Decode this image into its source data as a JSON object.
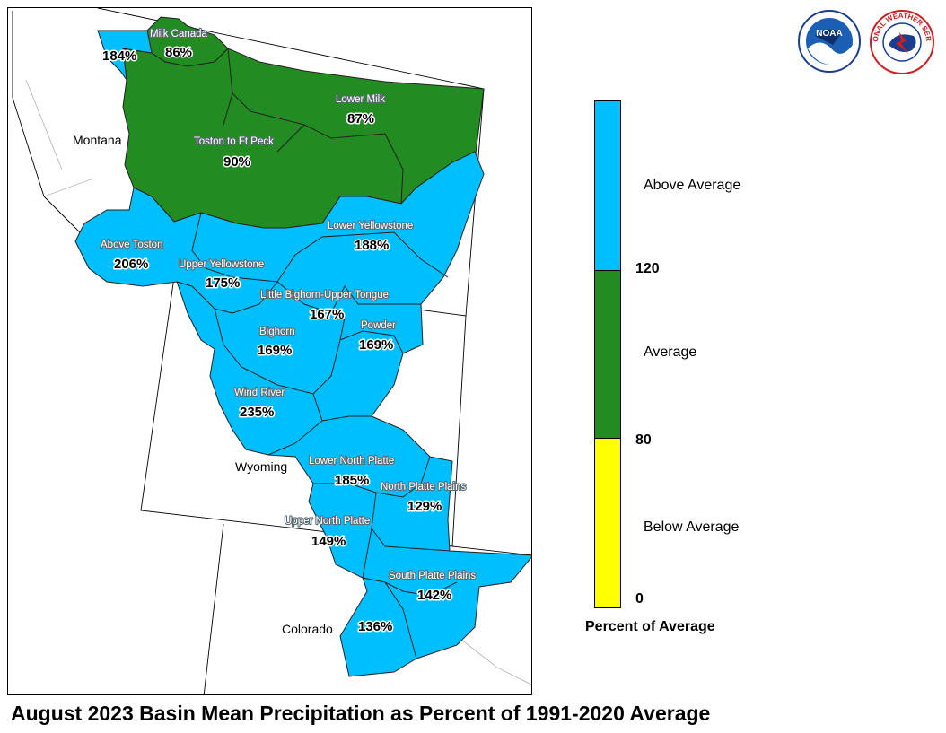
{
  "title": "August 2023 Basin Mean Precipitation as Percent of 1991-2020 Average",
  "colors": {
    "above": "#00bfff",
    "average": "#228b22",
    "below": "#ffff00",
    "border": "#222222"
  },
  "states": [
    {
      "id": "montana",
      "label": "Montana"
    },
    {
      "id": "wyoming",
      "label": "Wyoming"
    },
    {
      "id": "colorado",
      "label": "Colorado"
    }
  ],
  "basins": [
    {
      "id": "milk-canada",
      "name": "Milk Canada",
      "value": "86%",
      "category": "average"
    },
    {
      "id": "upper-milk",
      "name": "",
      "value": "184%",
      "category": "above"
    },
    {
      "id": "lower-milk",
      "name": "Lower Milk",
      "value": "87%",
      "category": "average"
    },
    {
      "id": "toston-ft-peck",
      "name": "Toston to Ft Peck",
      "value": "90%",
      "category": "average"
    },
    {
      "id": "above-toston",
      "name": "Above Toston",
      "value": "206%",
      "category": "above"
    },
    {
      "id": "upper-yellowstone",
      "name": "Upper Yellowstone",
      "value": "175%",
      "category": "above"
    },
    {
      "id": "lower-yellowstone",
      "name": "Lower Yellowstone",
      "value": "188%",
      "category": "above"
    },
    {
      "id": "little-bighorn",
      "name": "Little Bighorn-Upper Tongue",
      "value": "167%",
      "category": "above"
    },
    {
      "id": "bighorn",
      "name": "Bighorn",
      "value": "169%",
      "category": "above"
    },
    {
      "id": "powder",
      "name": "Powder",
      "value": "169%",
      "category": "above"
    },
    {
      "id": "wind-river",
      "name": "Wind River",
      "value": "235%",
      "category": "above"
    },
    {
      "id": "lower-north-platte",
      "name": "Lower North Platte",
      "value": "185%",
      "category": "above"
    },
    {
      "id": "north-platte-plains",
      "name": "North Platte Plains",
      "value": "129%",
      "category": "above"
    },
    {
      "id": "upper-north-platte",
      "name": "Upper North Platte",
      "value": "149%",
      "category": "above"
    },
    {
      "id": "south-platte-plains",
      "name": "South Platte Plains",
      "value": "142%",
      "category": "above"
    },
    {
      "id": "south-platte-mountains",
      "name": "",
      "value": "136%",
      "category": "above"
    }
  ],
  "legend": {
    "title": "Percent of Average",
    "categories": [
      {
        "label": "Above Average",
        "color": "#00bfff"
      },
      {
        "label": "Average",
        "color": "#228b22"
      },
      {
        "label": "Below Average",
        "color": "#ffff00"
      }
    ],
    "ticks": [
      "120",
      "80",
      "0"
    ]
  },
  "logos": [
    {
      "id": "noaa",
      "text": "NOAA",
      "icon": "noaa-logo-icon"
    },
    {
      "id": "nws",
      "text": "NATIONAL WEATHER SERVICE",
      "icon": "nws-logo-icon"
    }
  ]
}
